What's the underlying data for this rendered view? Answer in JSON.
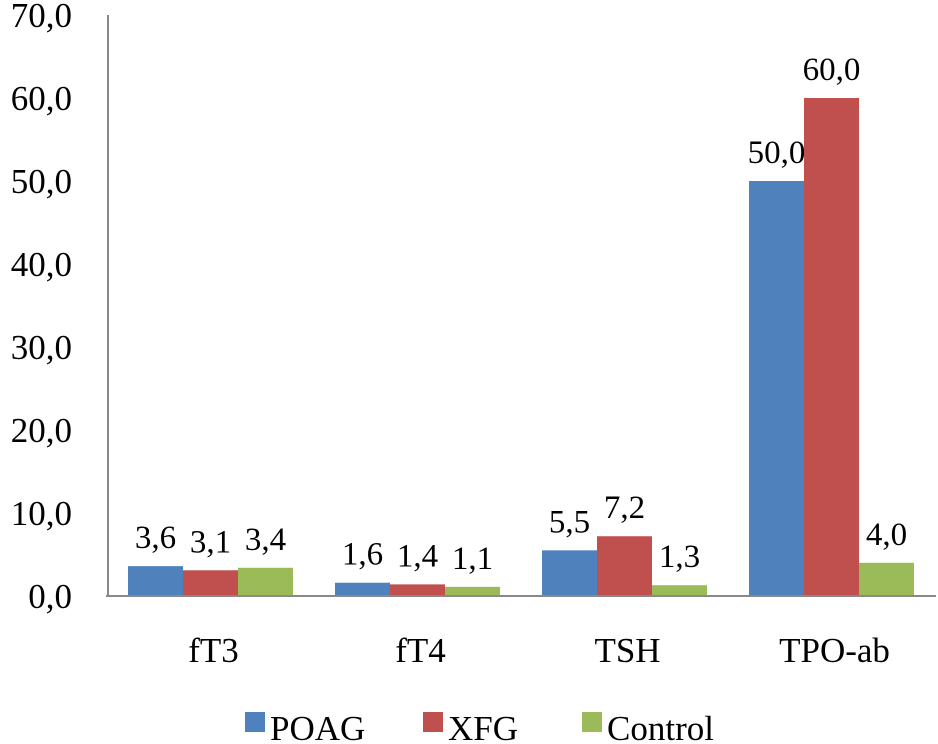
{
  "chart_data": {
    "type": "bar",
    "title": "",
    "xlabel": "",
    "ylabel": "",
    "ylim": [
      0,
      70
    ],
    "yticks": [
      "0,0",
      "10,0",
      "20,0",
      "30,0",
      "40,0",
      "50,0",
      "60,0",
      "70,0"
    ],
    "categories": [
      "fT3",
      "fT4",
      "TSH",
      "TPO-ab"
    ],
    "series": [
      {
        "name": "POAG",
        "color": "#4F81BD",
        "values": [
          3.6,
          1.6,
          5.5,
          50.0
        ],
        "labels": [
          "3,6",
          "1,6",
          "5,5",
          "50,0"
        ]
      },
      {
        "name": "XFG",
        "color": "#C0504D",
        "values": [
          3.1,
          1.4,
          7.2,
          60.0
        ],
        "labels": [
          "3,1",
          "1,4",
          "7,2",
          "60,0"
        ]
      },
      {
        "name": "Control",
        "color": "#9BBB59",
        "values": [
          3.4,
          1.1,
          1.3,
          4.0
        ],
        "labels": [
          "3,4",
          "1,1",
          "1,3",
          "4,0"
        ]
      }
    ],
    "grid": false,
    "legend_position": "bottom"
  }
}
